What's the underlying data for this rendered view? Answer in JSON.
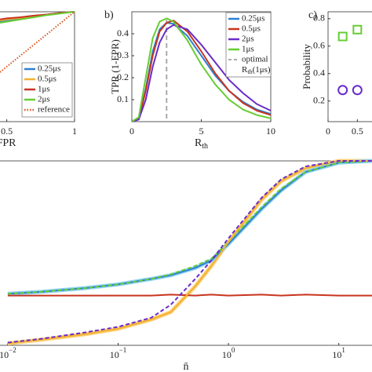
{
  "chart_data": [
    {
      "type": "line",
      "xlabel": "FPR",
      "x": [
        0.45,
        0.5,
        0.6,
        0.7,
        0.8,
        0.9,
        1
      ],
      "xlim": [
        0.45,
        1
      ],
      "ylim": [
        0,
        1
      ],
      "xticks": [
        0.5,
        1
      ],
      "series": [
        {
          "name": "0.25μs",
          "color": "#2f7fd1",
          "values": [
            0.91,
            0.92,
            0.94,
            0.96,
            0.975,
            0.99,
            1
          ]
        },
        {
          "name": "0.5μs",
          "color": "#f2b233",
          "values": [
            0.92,
            0.93,
            0.945,
            0.96,
            0.975,
            0.99,
            1
          ]
        },
        {
          "name": "1μs",
          "color": "#c8341e",
          "values": [
            0.93,
            0.94,
            0.95,
            0.965,
            0.975,
            0.99,
            1
          ]
        },
        {
          "name": "2μs",
          "color": "#66cc33",
          "values": [
            0.9,
            0.91,
            0.93,
            0.95,
            0.97,
            0.985,
            1
          ]
        },
        {
          "name": "reference",
          "color": "#d9541e",
          "dash": "dotted",
          "values": [
            0.45,
            0.5,
            0.6,
            0.7,
            0.8,
            0.9,
            1
          ]
        }
      ]
    },
    {
      "type": "line",
      "label": "b)",
      "xlabel": "R",
      "xlabel_sub": "th",
      "ylabel": "TPR (1-FPR)",
      "x": [
        0,
        0.5,
        1,
        1.5,
        2,
        2.5,
        3,
        4,
        5,
        6,
        7,
        8,
        9,
        10
      ],
      "xlim": [
        0,
        10
      ],
      "ylim": [
        0,
        0.5
      ],
      "xticks": [
        0,
        5,
        10
      ],
      "yticks": [
        0.1,
        0.2,
        0.3,
        0.4
      ],
      "vline": {
        "value": 2.5,
        "color": "#aaaaaa",
        "name": "optimal",
        "name2": "R",
        "name2_sub": "th",
        "name2_rest": "(1μs)"
      },
      "series": [
        {
          "name": "0.25μs",
          "color": "#2f7fd1",
          "values": [
            0,
            0.01,
            0.15,
            0.32,
            0.42,
            0.45,
            0.445,
            0.39,
            0.3,
            0.21,
            0.14,
            0.09,
            0.055,
            0.035
          ]
        },
        {
          "name": "0.5μs",
          "color": "#c8341e",
          "values": [
            0,
            0.01,
            0.14,
            0.3,
            0.41,
            0.45,
            0.46,
            0.41,
            0.32,
            0.22,
            0.14,
            0.085,
            0.05,
            0.03
          ]
        },
        {
          "name": "2μs",
          "color": "#6a2cc9",
          "values": [
            0,
            0.01,
            0.1,
            0.25,
            0.36,
            0.42,
            0.44,
            0.42,
            0.35,
            0.27,
            0.19,
            0.13,
            0.08,
            0.05
          ]
        },
        {
          "name": "1μs",
          "color": "#66cc33",
          "values": [
            0,
            0.02,
            0.2,
            0.38,
            0.455,
            0.47,
            0.455,
            0.37,
            0.26,
            0.17,
            0.1,
            0.055,
            0.03,
            0.015
          ]
        }
      ]
    },
    {
      "type": "scatter",
      "label": "c)",
      "ylabel": "Probability",
      "xlim": [
        0,
        0.75
      ],
      "ylim": [
        0.05,
        0.85
      ],
      "xticks": [
        0,
        0.5
      ],
      "yticks": [
        0.2,
        0.4,
        0.6,
        0.8
      ],
      "series": [
        {
          "color": "#66cc33",
          "marker": "square",
          "x": [
            0.25,
            0.5
          ],
          "values": [
            0.67,
            0.72
          ]
        },
        {
          "color": "#6a2cc9",
          "marker": "circle",
          "x": [
            0.25,
            0.5
          ],
          "values": [
            0.28,
            0.28
          ]
        }
      ]
    },
    {
      "type": "line",
      "xlabel": "n̄",
      "log_x": true,
      "x": [
        0.01,
        0.02,
        0.05,
        0.1,
        0.2,
        0.3,
        0.5,
        0.7,
        1,
        2,
        3,
        5,
        10,
        20
      ],
      "xlim": [
        0.0085,
        20
      ],
      "ylim": [
        0,
        1
      ],
      "xticks": [
        {
          "value": 0.01,
          "label": "10",
          "exp": "−2"
        },
        {
          "value": 0.1,
          "label": "10",
          "exp": "−1"
        },
        {
          "value": 1,
          "label": "10",
          "exp": "0"
        },
        {
          "value": 10,
          "label": "10",
          "exp": "1"
        }
      ],
      "series": [
        {
          "color": "#ffd27a",
          "width": 5,
          "values": [
            0.01,
            0.03,
            0.06,
            0.09,
            0.14,
            0.18,
            0.32,
            0.43,
            0.56,
            0.79,
            0.89,
            0.96,
            1,
            1
          ]
        },
        {
          "color": "#8fd3f4",
          "width": 5,
          "values": [
            0.28,
            0.29,
            0.31,
            0.33,
            0.36,
            0.38,
            0.42,
            0.46,
            0.55,
            0.74,
            0.84,
            0.94,
            0.99,
            1
          ]
        },
        {
          "color": "#2f7fd1",
          "values": [
            0.28,
            0.29,
            0.31,
            0.33,
            0.36,
            0.38,
            0.42,
            0.46,
            0.55,
            0.74,
            0.84,
            0.94,
            0.99,
            1
          ]
        },
        {
          "color": "#66cc33",
          "dash": "dashed",
          "values": [
            0.28,
            0.29,
            0.31,
            0.33,
            0.36,
            0.385,
            0.43,
            0.47,
            0.56,
            0.75,
            0.85,
            0.94,
            0.99,
            1
          ]
        },
        {
          "color": "#c8341e",
          "values": [
            0.27,
            0.27,
            0.27,
            0.27,
            0.27,
            0.275,
            0.27,
            0.275,
            0.27,
            0.275,
            0.27,
            0.275,
            0.27,
            0.27
          ]
        },
        {
          "color": "#f2b233",
          "values": [
            0.01,
            0.03,
            0.06,
            0.09,
            0.14,
            0.18,
            0.32,
            0.43,
            0.56,
            0.79,
            0.89,
            0.96,
            1,
            1
          ]
        },
        {
          "color": "#6a2cc9",
          "dash": "dashed",
          "values": [
            0.015,
            0.035,
            0.07,
            0.1,
            0.15,
            0.22,
            0.36,
            0.46,
            0.58,
            0.8,
            0.9,
            0.97,
            1,
            1
          ]
        }
      ]
    }
  ]
}
